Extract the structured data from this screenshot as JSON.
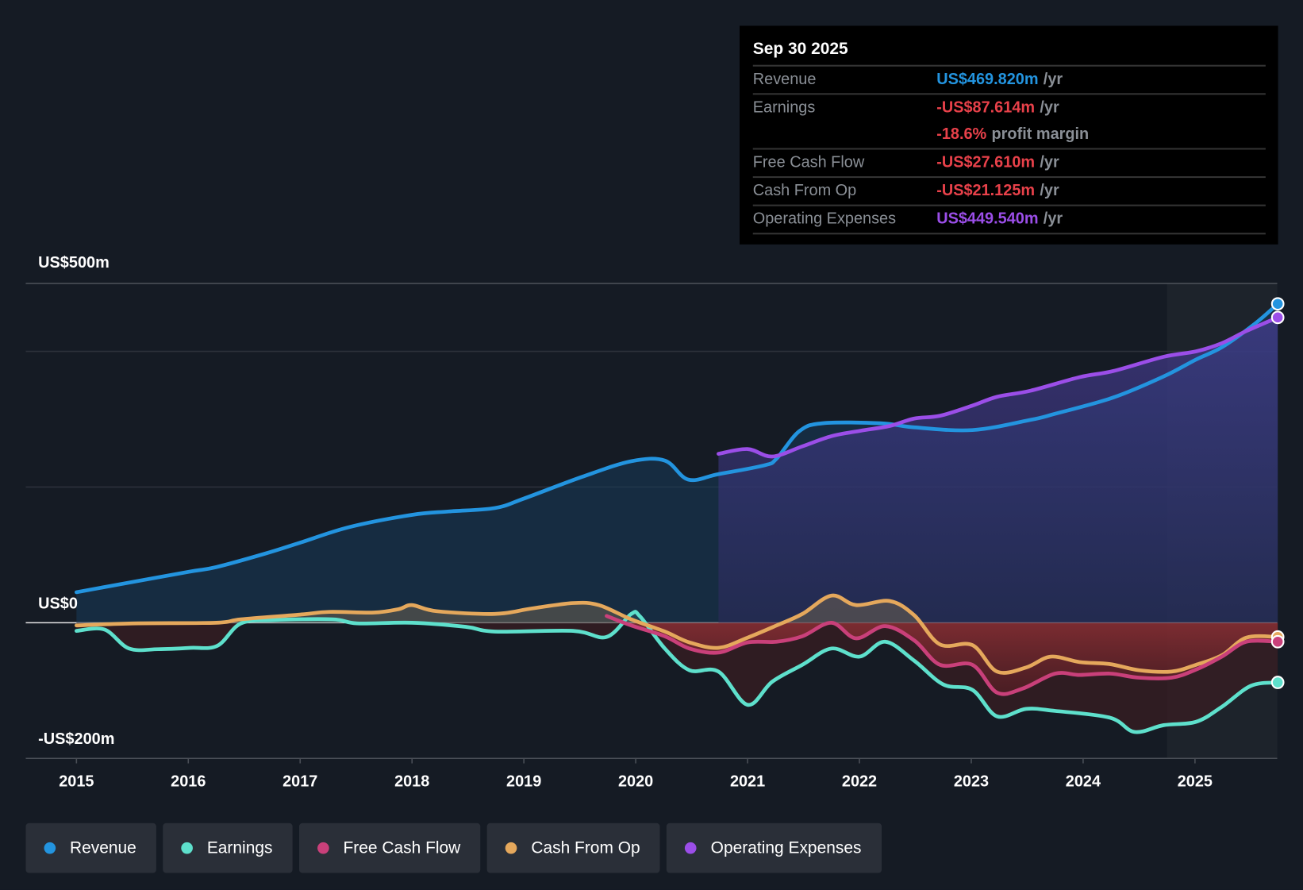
{
  "tooltip": {
    "date": "Sep 30 2025",
    "rows": [
      {
        "label": "Revenue",
        "value": "US$469.820m",
        "unit": "/yr"
      },
      {
        "label": "Earnings",
        "value": "-US$87.614m",
        "unit": "/yr",
        "extra_value": "-18.6%",
        "extra_unit": "profit margin"
      },
      {
        "label": "Free Cash Flow",
        "value": "-US$27.610m",
        "unit": "/yr"
      },
      {
        "label": "Cash From Op",
        "value": "-US$21.125m",
        "unit": "/yr"
      },
      {
        "label": "Operating Expenses",
        "value": "US$449.540m",
        "unit": "/yr"
      }
    ]
  },
  "legend": [
    "Revenue",
    "Earnings",
    "Free Cash Flow",
    "Cash From Op",
    "Operating Expenses"
  ],
  "colors": {
    "revenue": "#2394df",
    "earnings": "#5ee0cc",
    "fcf": "#c9407a",
    "cfo": "#e5a85c",
    "opex": "#9b4ee8",
    "positive_val": "#2394df",
    "negative_val": "#e8414a"
  },
  "chart_data": {
    "type": "line",
    "title": "",
    "xlabel": "",
    "ylabel": "",
    "ylim": [
      -200,
      500
    ],
    "xlim": [
      2014.55,
      2025.74
    ],
    "y_tick_labels": [
      {
        "value": 500,
        "label": "US$500m"
      },
      {
        "value": 0,
        "label": "US$0"
      },
      {
        "value": -200,
        "label": "-US$200m"
      }
    ],
    "gridlines": [
      500,
      400,
      200,
      0,
      -200
    ],
    "x_ticks": [
      2015,
      2016,
      2017,
      2018,
      2019,
      2020,
      2021,
      2022,
      2023,
      2024,
      2025
    ],
    "x_tick_labels": [
      "2015",
      "2016",
      "2017",
      "2018",
      "2019",
      "2020",
      "2021",
      "2022",
      "2023",
      "2024",
      "2025"
    ],
    "highlight_from": 2024.75,
    "series": [
      {
        "name": "Revenue",
        "key": "revenue",
        "x": [
          2015.0,
          2015.5,
          2016.0,
          2016.25,
          2016.69,
          2017.0,
          2017.44,
          2018.0,
          2018.33,
          2018.74,
          2019.0,
          2019.52,
          2019.96,
          2020.26,
          2020.47,
          2020.74,
          2021.15,
          2021.26,
          2021.46,
          2021.67,
          2022.19,
          2022.49,
          2023.01,
          2023.53,
          2023.75,
          2024.27,
          2024.72,
          2025.01,
          2025.24,
          2025.53,
          2025.74
        ],
        "y": [
          45,
          60,
          75,
          82,
          102,
          118,
          141,
          159,
          164,
          169,
          183,
          215,
          238,
          239,
          211,
          219,
          232,
          242,
          282,
          294,
          294,
          288,
          284,
          299,
          308,
          332,
          363,
          388,
          406,
          440,
          470
        ]
      },
      {
        "name": "Earnings",
        "key": "earnings",
        "x": [
          2015.0,
          2015.25,
          2015.47,
          2015.73,
          2016.02,
          2016.26,
          2016.47,
          2016.77,
          2017.29,
          2017.51,
          2018.0,
          2018.48,
          2018.74,
          2019.44,
          2019.74,
          2019.96,
          2020.04,
          2020.26,
          2020.48,
          2020.74,
          2021.0,
          2021.22,
          2021.49,
          2021.75,
          2022.0,
          2022.23,
          2022.49,
          2022.75,
          2023.01,
          2023.23,
          2023.49,
          2023.75,
          2024.24,
          2024.46,
          2024.72,
          2025.01,
          2025.24,
          2025.5,
          2025.74
        ],
        "y": [
          -12,
          -10,
          -38,
          -39,
          -37,
          -34,
          -1,
          4,
          5,
          -1,
          0,
          -6,
          -13,
          -12,
          -21,
          13,
          9,
          -38,
          -70,
          -72,
          -121,
          -87,
          -62,
          -38,
          -50,
          -28,
          -56,
          -91,
          -99,
          -138,
          -127,
          -130,
          -140,
          -161,
          -151,
          -146,
          -124,
          -93,
          -88
        ]
      },
      {
        "name": "Free Cash Flow",
        "key": "fcf",
        "x": [
          2019.74,
          2019.96,
          2020.26,
          2020.48,
          2020.74,
          2021.0,
          2021.26,
          2021.49,
          2021.75,
          2021.97,
          2022.23,
          2022.49,
          2022.72,
          2023.01,
          2023.23,
          2023.46,
          2023.75,
          2023.97,
          2024.24,
          2024.5,
          2024.79,
          2025.01,
          2025.24,
          2025.46,
          2025.74
        ],
        "y": [
          10,
          -4,
          -20,
          -38,
          -44,
          -29,
          -28,
          -20,
          0,
          -23,
          -5,
          -26,
          -62,
          -62,
          -103,
          -97,
          -75,
          -77,
          -75,
          -81,
          -81,
          -69,
          -50,
          -28,
          -28
        ]
      },
      {
        "name": "Cash From Op",
        "key": "cfo",
        "x": [
          2015.0,
          2015.5,
          2016.25,
          2016.47,
          2017.0,
          2017.26,
          2017.66,
          2017.88,
          2018.0,
          2018.22,
          2018.74,
          2019.07,
          2019.44,
          2019.67,
          2019.96,
          2020.26,
          2020.48,
          2020.74,
          2021.0,
          2021.26,
          2021.49,
          2021.75,
          2021.97,
          2022.27,
          2022.49,
          2022.72,
          2023.01,
          2023.23,
          2023.49,
          2023.71,
          2023.97,
          2024.24,
          2024.5,
          2024.79,
          2025.01,
          2025.24,
          2025.46,
          2025.74
        ],
        "y": [
          -4,
          -1,
          0,
          5,
          12,
          16,
          15,
          20,
          26,
          17,
          13,
          21,
          29,
          26,
          5,
          -13,
          -29,
          -37,
          -22,
          -4,
          13,
          40,
          26,
          32,
          11,
          -32,
          -33,
          -72,
          -66,
          -50,
          -58,
          -61,
          -70,
          -72,
          -62,
          -48,
          -22,
          -21
        ]
      },
      {
        "name": "Operating Expenses",
        "key": "opex",
        "x": [
          2020.74,
          2021.0,
          2021.22,
          2021.49,
          2021.75,
          2022.01,
          2022.27,
          2022.49,
          2022.72,
          2023.01,
          2023.23,
          2023.53,
          2023.97,
          2024.27,
          2024.72,
          2025.01,
          2025.24,
          2025.46,
          2025.74
        ],
        "y": [
          249,
          256,
          245,
          260,
          275,
          283,
          290,
          301,
          305,
          320,
          333,
          342,
          362,
          371,
          392,
          400,
          412,
          430,
          450
        ]
      }
    ]
  }
}
